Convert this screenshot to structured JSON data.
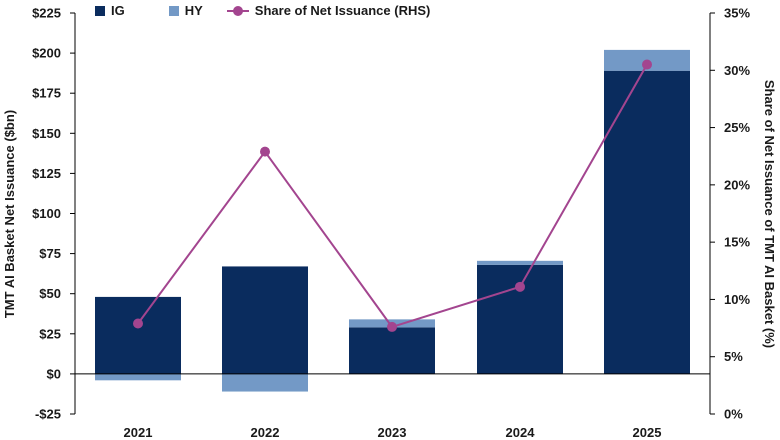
{
  "chart_data": {
    "type": "bar",
    "subtype": "stacked bar with line on secondary axis",
    "categories": [
      "2021",
      "2022",
      "2023",
      "2024",
      "2025"
    ],
    "series": [
      {
        "name": "IG",
        "axis": "left",
        "type": "bar",
        "color": "#0a2c5e",
        "values": [
          48,
          67,
          29,
          68,
          189
        ]
      },
      {
        "name": "HY",
        "axis": "left",
        "type": "bar",
        "color": "#7399c6",
        "values": [
          -4,
          -11,
          5,
          2.5,
          13
        ]
      },
      {
        "name": "Share of Net Issuance (RHS)",
        "axis": "right",
        "type": "line",
        "color": "#a3458f",
        "values": [
          7.9,
          22.9,
          7.6,
          11.1,
          30.5
        ]
      }
    ],
    "ylabel": "TMT AI Basket Net Issuance ($bn)",
    "y2label": "Share of Net  Issuance of TMT AI Basket (%)",
    "ylim": [
      -25,
      225
    ],
    "y2lim": [
      0,
      35
    ],
    "yticks": [
      "$225",
      "$200",
      "$175",
      "$150",
      "$125",
      "$100",
      "$75",
      "$50",
      "$25",
      "$0",
      "-$25"
    ],
    "y2ticks": [
      "35%",
      "30%",
      "25%",
      "20%",
      "15%",
      "10%",
      "5%",
      "0%"
    ],
    "legend_position": "top",
    "grid": false
  },
  "legend": {
    "ig": "IG",
    "hy": "HY",
    "share": "Share of Net Issuance (RHS)"
  },
  "colors": {
    "ig": "#0a2c5e",
    "hy": "#7399c6",
    "line": "#a3458f"
  }
}
